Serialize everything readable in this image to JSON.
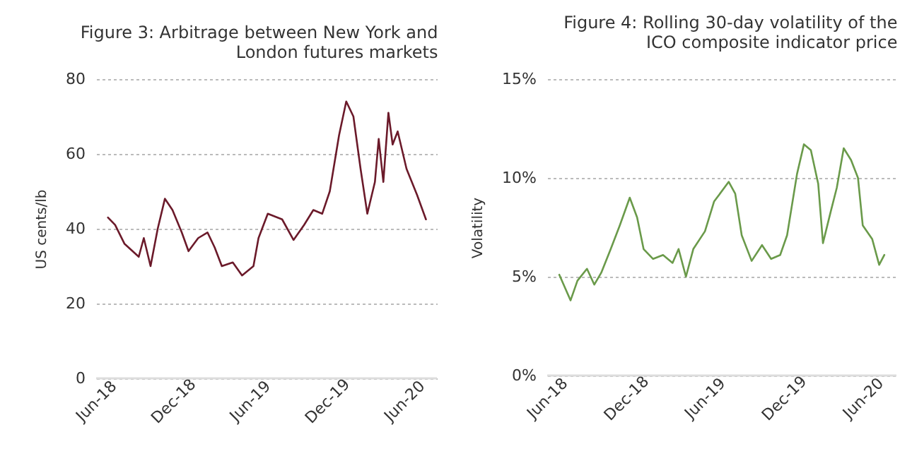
{
  "chart_data": [
    {
      "type": "line",
      "title": [
        "Figure 3:  Arbitrage between New York and",
        "London futures markets"
      ],
      "ylabel": "US cents/lb",
      "x": [
        "2018-06-29",
        "2018-07-16",
        "2018-08-07",
        "2018-09-10",
        "2018-09-22",
        "2018-10-08",
        "2018-10-25",
        "2018-11-11",
        "2018-11-29",
        "2018-12-21",
        "2019-01-06",
        "2019-01-29",
        "2019-02-20",
        "2019-03-09",
        "2019-03-26",
        "2019-04-21",
        "2019-05-13",
        "2019-06-09",
        "2019-06-21",
        "2019-07-13",
        "2019-08-16",
        "2019-09-12",
        "2019-10-07",
        "2019-10-29",
        "2019-11-19",
        "2019-12-07",
        "2019-12-29",
        "2020-01-15",
        "2020-02-01",
        "2020-02-18",
        "2020-03-05",
        "2020-03-23",
        "2020-04-01",
        "2020-04-12",
        "2020-04-24",
        "2020-05-04",
        "2020-05-16",
        "2020-06-06",
        "2020-07-01",
        "2020-07-22"
      ],
      "series": [
        {
          "color": "#6b1a2a",
          "values": [
            43,
            41,
            36,
            32.5,
            37.5,
            30,
            40,
            48,
            45,
            39,
            34,
            37.5,
            39,
            35,
            30,
            31,
            27.5,
            30,
            37.5,
            44,
            42.5,
            37,
            41,
            45,
            44,
            50,
            65,
            74,
            70,
            56,
            44,
            52.5,
            64,
            52.5,
            71,
            62.5,
            66,
            56,
            49,
            42.5
          ]
        }
      ],
      "xlim": [
        "2018-06-01",
        "2020-08-17"
      ],
      "xticks": [
        {
          "value": "2018-06-01",
          "label": "Jun-18"
        },
        {
          "value": "2018-12-01",
          "label": "Dec-18"
        },
        {
          "value": "2019-06-01",
          "label": "Jun-19"
        },
        {
          "value": "2019-12-01",
          "label": "Dec-19"
        },
        {
          "value": "2020-06-01",
          "label": "Jun-20"
        }
      ],
      "ylim": [
        0,
        80
      ],
      "yticks": [
        0,
        20,
        40,
        60,
        80
      ],
      "grid": "y",
      "line_style": "solid",
      "marker": "none"
    },
    {
      "type": "line",
      "title": [
        "Figure 4:  Rolling 30-day volatility of the",
        "ICO  composite indicator price"
      ],
      "ylabel": "Volatility",
      "x": [
        "2018-06-29",
        "2018-07-25",
        "2018-08-10",
        "2018-09-01",
        "2018-09-18",
        "2018-10-04",
        "2018-10-26",
        "2018-11-16",
        "2018-12-09",
        "2018-12-26",
        "2019-01-10",
        "2019-02-01",
        "2019-02-24",
        "2019-03-18",
        "2019-04-01",
        "2019-04-18",
        "2019-05-05",
        "2019-06-01",
        "2019-06-22",
        "2019-07-26",
        "2019-08-10",
        "2019-08-25",
        "2019-09-17",
        "2019-10-11",
        "2019-11-01",
        "2019-11-22",
        "2019-12-08",
        "2019-12-31",
        "2020-01-16",
        "2020-02-01",
        "2020-02-18",
        "2020-02-29",
        "2020-03-18",
        "2020-04-01",
        "2020-04-17",
        "2020-05-04",
        "2020-05-20",
        "2020-05-31",
        "2020-06-22",
        "2020-07-08",
        "2020-07-20"
      ],
      "series": [
        {
          "color": "#6a9a4a",
          "values": [
            5.1,
            3.8,
            4.8,
            5.4,
            4.6,
            5.2,
            6.4,
            7.6,
            9.0,
            8.0,
            6.4,
            5.9,
            6.1,
            5.7,
            6.4,
            5.0,
            6.4,
            7.3,
            8.8,
            9.8,
            9.2,
            7.1,
            5.8,
            6.6,
            5.9,
            6.1,
            7.1,
            10.2,
            11.7,
            11.4,
            9.7,
            6.7,
            8.3,
            9.5,
            11.5,
            10.9,
            10.0,
            7.6,
            6.9,
            5.6,
            6.1
          ]
        }
      ],
      "xlim": [
        "2018-06-01",
        "2020-08-17"
      ],
      "xticks": [
        {
          "value": "2018-06-01",
          "label": "Jun-18"
        },
        {
          "value": "2018-12-01",
          "label": "Dec-18"
        },
        {
          "value": "2019-06-01",
          "label": "Jun-19"
        },
        {
          "value": "2019-12-01",
          "label": "Dec-19"
        },
        {
          "value": "2020-06-01",
          "label": "Jun-20"
        }
      ],
      "ylim": [
        0,
        15
      ],
      "yticks": [
        {
          "value": 0,
          "label": "0%"
        },
        {
          "value": 5,
          "label": "5%"
        },
        {
          "value": 10,
          "label": "10%"
        },
        {
          "value": 15,
          "label": "15%"
        }
      ],
      "grid": "y",
      "line_style": "solid",
      "marker": "none"
    }
  ]
}
